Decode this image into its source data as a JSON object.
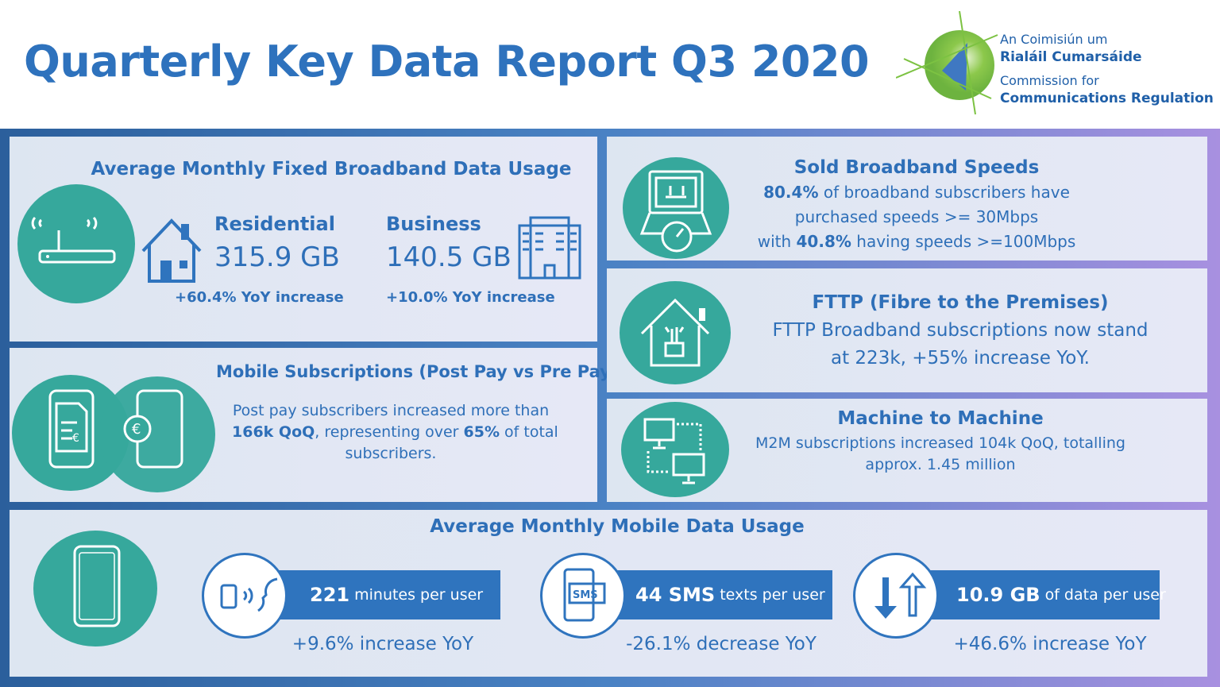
{
  "header": {
    "title": "Quarterly Key Data Report Q3 2020",
    "logo": {
      "line1": "An Coimisiún um",
      "line2": "Rialáil Cumarsáide",
      "line3": "Commission for",
      "line4": "Communications Regulation"
    }
  },
  "colors": {
    "teal": "#36a89c",
    "blue": "#2f74be",
    "green": "#7cc242"
  },
  "fixed_broadband": {
    "title": "Average Monthly Fixed Broadband Data Usage",
    "residential": {
      "label": "Residential",
      "value": "315.9 GB",
      "change": "+60.4% YoY increase"
    },
    "business": {
      "label": "Business",
      "value": "140.5 GB",
      "change": "+10.0% YoY increase"
    }
  },
  "mobile_subs": {
    "title": "Mobile Subscriptions (Post Pay vs Pre Pay)",
    "line1": "Post pay subscribers increased more than",
    "line2_b1": "166k QoQ",
    "line2_mid": ", representing over ",
    "line2_b2": "65%",
    "line2_end": " of total",
    "line3": "subscribers."
  },
  "speeds": {
    "title": "Sold Broadband Speeds",
    "b1": "80.4%",
    "l1": " of broadband subscribers have",
    "l2": "purchased speeds >= 30Mbps",
    "l3a": "with ",
    "b2": "40.8%",
    "l3b": " having speeds >=100Mbps"
  },
  "fttp": {
    "title": "FTTP (Fibre to the Premises)",
    "l1": "FTTP Broadband subscriptions now stand",
    "l2": "at 223k, +55% increase YoY."
  },
  "m2m": {
    "title": "Machine to Machine",
    "l1": "M2M subscriptions increased 104k QoQ, totalling",
    "l2": "approx. 1.45 million"
  },
  "mobile_data": {
    "title": "Average Monthly Mobile Data Usage",
    "items": [
      {
        "value": "221",
        "unit": "minutes per user",
        "change": "+9.6% increase YoY",
        "icon": "voice-call-icon"
      },
      {
        "value": "44 SMS",
        "unit": "texts per user",
        "change": "-26.1% decrease YoY",
        "icon": "sms-icon"
      },
      {
        "value": "10.9 GB",
        "unit": "of data per user",
        "change": "+46.6% increase YoY",
        "icon": "data-transfer-icon"
      }
    ]
  }
}
